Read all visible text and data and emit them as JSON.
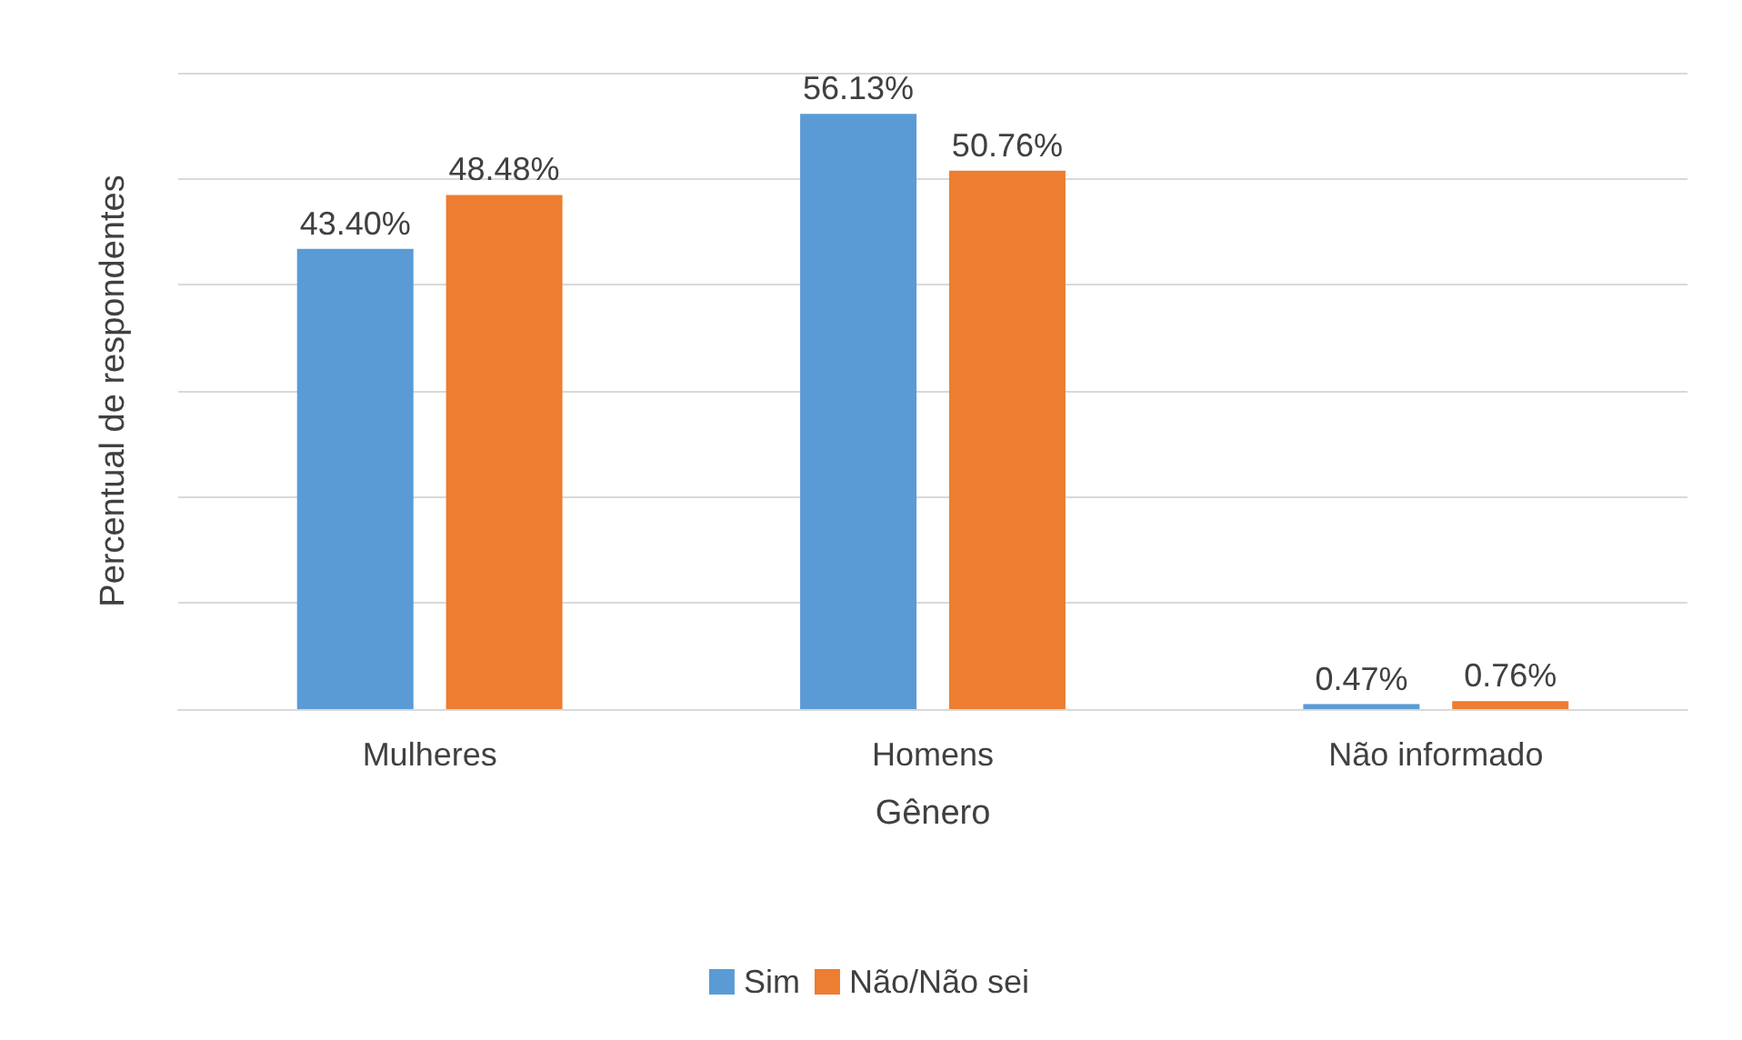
{
  "chart_data": {
    "type": "bar",
    "xlabel": "Gênero",
    "ylabel": "Percentual de respondentes",
    "categories": [
      "Mulheres",
      "Homens",
      "Não informado"
    ],
    "series": [
      {
        "name": "Sim",
        "color": "#5b9bd5",
        "values": [
          43.4,
          56.13,
          0.47
        ],
        "value_labels": [
          "43.40%",
          "56.13%",
          "0.47%"
        ]
      },
      {
        "name": "Não/Não sei",
        "color": "#ed7d31",
        "values": [
          48.48,
          50.76,
          0.76
        ],
        "value_labels": [
          "48.48%",
          "50.76%",
          "0.76%"
        ]
      }
    ],
    "ylim": [
      0,
      60
    ],
    "yticks": [
      {
        "value": 0,
        "label": null
      },
      {
        "value": 10,
        "label": null
      },
      {
        "value": 20,
        "label": null
      },
      {
        "value": 30,
        "label": null
      },
      {
        "value": 40,
        "label": null
      },
      {
        "value": 50,
        "label": null
      },
      {
        "value": 60,
        "label": null
      }
    ],
    "tick_labels": "x",
    "grid": "y",
    "legend": "bottom"
  }
}
